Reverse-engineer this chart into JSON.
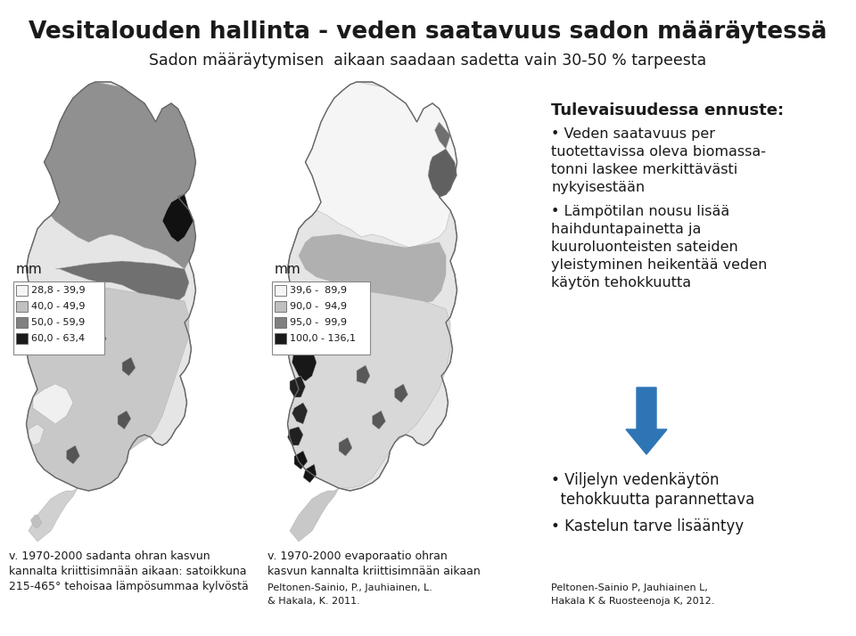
{
  "title": "Vesitalouden hallinta - veden saatavuus sadon määräytessä",
  "subtitle": "Sadon määräytymisen  aikaan saadaan sadetta vain 30-50 % tarpeesta",
  "mm_left": "mm",
  "mm_right": "mm",
  "legend_left": [
    "28,8 - 39,9",
    "40,0 - 49,9",
    "50,0 - 59,9",
    "60,0 - 63,4"
  ],
  "legend_right": [
    "39,6 -  89,9",
    "90,0 -  94,9",
    "95,0 -  99,9",
    "100,0 - 136,1"
  ],
  "legend_left_colors": [
    "#f5f5f5",
    "#c0c0c0",
    "#808080",
    "#1a1a1a"
  ],
  "legend_right_colors": [
    "#f5f5f5",
    "#c0c0c0",
    "#808080",
    "#1a1a1a"
  ],
  "future_title": "Tulevaisuudessa ennuste:",
  "bullet1_line1": "• Veden saatavuus per",
  "bullet1_line2": "tuotettavissa oleva biomassa-",
  "bullet1_line3": "tonni laskee merkittävästi",
  "bullet1_line4": "nykyisestään",
  "bullet2_line1": "• Lämpötilan nousu lisää",
  "bullet2_line2": "haihduntapainetta ja",
  "bullet2_line3": "kuuroluonteisten sateiden",
  "bullet2_line4": "yleistyminen heikentää veden",
  "bullet2_line5": "käytön tehokkuutta",
  "outcome1_line1": "• Viljelyn vedenkäytön",
  "outcome1_line2": "  tehokkuutta parannettava",
  "outcome2": "• Kastelun tarve lisääntyy",
  "arrow_color": "#2e75b6",
  "caption_left_1": "v. 1970-2000 sadanta ohran kasvun",
  "caption_left_2": "kannalta kriittisimпään aikaan: satoikkuna",
  "caption_left_3": "215-465° tehoisaa lämpösummaa kylvöstä",
  "caption_center_1": "v. 1970-2000 evaporaatio ohran",
  "caption_center_2": "kasvun kannalta kriittisimпään aikaan",
  "caption_center2_1": "Peltonen-Sainio, P., Jauhiainen, L.",
  "caption_center2_2": "& Hakala, K. 2011.",
  "caption_right_1": "Peltonen-Sainio P, Jauhiainen L,",
  "caption_right_2": "Hakala K & Ruosteenoja K, 2012.",
  "bg_color": "#ffffff",
  "map_bg": "#ffffff",
  "text_color": "#1a1a1a"
}
